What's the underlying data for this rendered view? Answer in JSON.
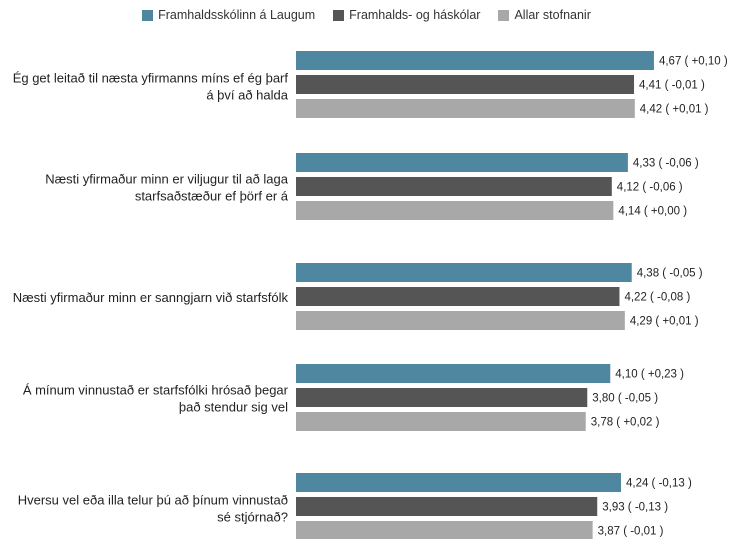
{
  "chart_data": {
    "type": "bar",
    "orientation": "horizontal",
    "legend": "top-center",
    "grid": false,
    "xlim": [
      0,
      4.7
    ],
    "colors": [
      "#4f87a1",
      "#555555",
      "#a8a8a8"
    ],
    "series": [
      {
        "name": "Framhaldsskólinn á Laugum",
        "color": "#4f87a1"
      },
      {
        "name": "Framhalds- og háskólar",
        "color": "#555555"
      },
      {
        "name": "Allar stofnanir",
        "color": "#a8a8a8"
      }
    ],
    "categories": [
      {
        "lines": [
          "Ég get leitað til næsta yfirmanns míns ef ég þarf",
          "á því að halda"
        ],
        "values": [
          4.67,
          4.41,
          4.42
        ],
        "labels": [
          "4,67 ( +0,10 )",
          "4,41 ( -0,01 )",
          "4,42 ( +0,01 )"
        ]
      },
      {
        "lines": [
          "Næsti yfirmaður minn er viljugur til að laga",
          "starfsaðstæður ef þörf er á"
        ],
        "values": [
          4.33,
          4.12,
          4.14
        ],
        "labels": [
          "4,33 ( -0,06 )",
          "4,12 ( -0,06 )",
          "4,14 ( +0,00 )"
        ]
      },
      {
        "lines": [
          "Næsti yfirmaður minn er sanngjarn við starfsfólk"
        ],
        "values": [
          4.38,
          4.22,
          4.29
        ],
        "labels": [
          "4,38 ( -0,05 )",
          "4,22 ( -0,08 )",
          "4,29 ( +0,01 )"
        ]
      },
      {
        "lines": [
          "Á mínum vinnustað er starfsfólki hrósað þegar",
          "það stendur sig vel"
        ],
        "values": [
          4.1,
          3.8,
          3.78
        ],
        "labels": [
          "4,10 ( +0,23 )",
          "3,80 ( -0,05 )",
          "3,78 ( +0,02 )"
        ]
      },
      {
        "lines": [
          "Hversu vel eða illa telur þú að þínum vinnustað",
          "sé stjórnað?"
        ],
        "values": [
          4.24,
          3.93,
          3.87
        ],
        "labels": [
          "4,24 ( -0,13 )",
          "3,93 ( -0,13 )",
          "3,87 ( -0,01 )"
        ]
      }
    ]
  }
}
